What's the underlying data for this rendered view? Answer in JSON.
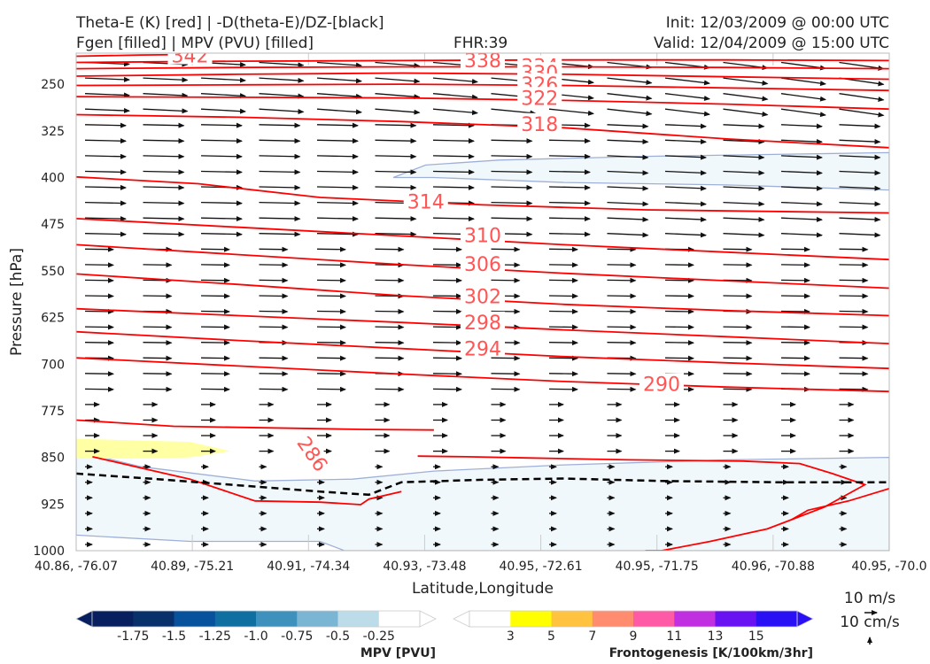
{
  "header": {
    "title_left_1": "Theta-E (K) [red] | -D(theta-E)/DZ-[black]",
    "title_left_2": "Fgen [filled] | MPV (PVU) [filled]",
    "fhr": "FHR:39",
    "init": "Init: 12/03/2009 @ 00:00 UTC",
    "valid": "Valid: 12/04/2009 @ 15:00 UTC"
  },
  "chart_data": {
    "type": "cross-section",
    "xlabel": "Latitude,Longitude",
    "ylabel": "Pressure [hPa]",
    "x_ticks": [
      "40.86, -76.07",
      "40.89, -75.21",
      "40.91, -74.34",
      "40.93, -73.48",
      "40.95, -72.61",
      "40.95, -71.75",
      "40.96, -70.88",
      "40.95, -70.0"
    ],
    "y_ticks": [
      250,
      325,
      400,
      475,
      550,
      625,
      700,
      775,
      850,
      925,
      1000
    ],
    "ylim": [
      1000,
      200
    ],
    "y_inverted": true,
    "theta_e_color": "#ff0000",
    "theta_e_label_color": "#ff5555",
    "theta_e_contours": [
      {
        "level": 342,
        "label": "342",
        "points": [
          [
            0,
            205
          ],
          [
            8,
            203
          ],
          [
            16,
            202
          ]
        ]
      },
      {
        "level": 338,
        "label": "338",
        "points": [
          [
            0,
            215
          ],
          [
            20,
            213
          ],
          [
            40,
            212
          ],
          [
            60,
            211
          ],
          [
            80,
            211
          ],
          [
            100,
            212
          ]
        ]
      },
      {
        "level": 334,
        "label": "334",
        "points": [
          [
            0,
            225
          ],
          [
            20,
            223
          ],
          [
            40,
            222
          ],
          [
            60,
            222
          ],
          [
            80,
            223
          ],
          [
            100,
            225
          ]
        ]
      },
      {
        "level": 330,
        "label": "330",
        "points": [
          [
            0,
            237
          ],
          [
            20,
            234
          ],
          [
            40,
            232
          ],
          [
            60,
            234
          ],
          [
            80,
            238
          ],
          [
            100,
            242
          ]
        ]
      },
      {
        "level": 326,
        "label": "326",
        "points": [
          [
            0,
            252
          ],
          [
            20,
            251
          ],
          [
            40,
            250
          ],
          [
            60,
            252
          ],
          [
            80,
            256
          ],
          [
            100,
            260
          ]
        ]
      },
      {
        "level": 322,
        "label": "322",
        "points": [
          [
            0,
            270
          ],
          [
            20,
            271
          ],
          [
            40,
            272
          ],
          [
            60,
            276
          ],
          [
            80,
            282
          ],
          [
            100,
            290
          ]
        ]
      },
      {
        "level": 318,
        "label": "318",
        "points": [
          [
            0,
            299
          ],
          [
            20,
            303
          ],
          [
            40,
            310
          ],
          [
            60,
            320
          ],
          [
            80,
            338
          ],
          [
            100,
            352
          ]
        ]
      },
      {
        "level": 314,
        "label": "314",
        "points": [
          [
            0,
            399
          ],
          [
            15,
            410
          ],
          [
            30,
            432
          ],
          [
            50,
            444
          ],
          [
            70,
            452
          ],
          [
            100,
            457
          ]
        ]
      },
      {
        "level": 310,
        "label": "310",
        "points": [
          [
            0,
            466
          ],
          [
            20,
            480
          ],
          [
            40,
            494
          ],
          [
            60,
            508
          ],
          [
            80,
            520
          ],
          [
            100,
            532
          ]
        ]
      },
      {
        "level": 306,
        "label": "306",
        "points": [
          [
            0,
            508
          ],
          [
            20,
            524
          ],
          [
            40,
            540
          ],
          [
            60,
            554
          ],
          [
            80,
            566
          ],
          [
            100,
            578
          ]
        ]
      },
      {
        "level": 302,
        "label": "302",
        "points": [
          [
            0,
            555
          ],
          [
            20,
            572
          ],
          [
            40,
            590
          ],
          [
            60,
            604
          ],
          [
            80,
            614
          ],
          [
            100,
            622
          ]
        ]
      },
      {
        "level": 298,
        "label": "298",
        "points": [
          [
            0,
            611
          ],
          [
            20,
            622
          ],
          [
            40,
            633
          ],
          [
            60,
            645
          ],
          [
            80,
            656
          ],
          [
            100,
            667
          ]
        ]
      },
      {
        "level": 294,
        "label": "294",
        "points": [
          [
            0,
            648
          ],
          [
            20,
            662
          ],
          [
            40,
            675
          ],
          [
            60,
            688
          ],
          [
            80,
            698
          ],
          [
            100,
            707
          ]
        ]
      },
      {
        "level": 290,
        "label": "290",
        "points": [
          [
            0,
            690
          ],
          [
            20,
            703
          ],
          [
            40,
            716
          ],
          [
            60,
            728
          ],
          [
            80,
            737
          ],
          [
            100,
            744
          ]
        ]
      },
      {
        "level": 286,
        "label": "286",
        "points": [
          [
            0,
            790
          ],
          [
            12,
            800
          ],
          [
            35,
            805
          ],
          [
            44,
            806
          ]
        ]
      },
      {
        "level": 286,
        "label": "",
        "points": [
          [
            2,
            849
          ],
          [
            4,
            855
          ],
          [
            8,
            867
          ],
          [
            14,
            885
          ],
          [
            22,
            920
          ],
          [
            30,
            922
          ],
          [
            35,
            926
          ],
          [
            36,
            917
          ],
          [
            40,
            905
          ]
        ]
      },
      {
        "level": 286,
        "label": "",
        "points": [
          [
            70,
            1000
          ],
          [
            72,
            1000
          ],
          [
            78,
            985
          ],
          [
            85,
            965
          ],
          [
            88,
            950
          ],
          [
            90,
            935
          ],
          [
            95,
            920
          ],
          [
            100,
            900
          ]
        ]
      },
      {
        "level": 286,
        "label": "",
        "points": [
          [
            42,
            848
          ],
          [
            48,
            849
          ],
          [
            56,
            851
          ],
          [
            68,
            854
          ],
          [
            82,
            856
          ],
          [
            89,
            860
          ],
          [
            93,
            876
          ],
          [
            97,
            894
          ],
          [
            92,
            930
          ],
          [
            88,
            950
          ]
        ]
      }
    ],
    "dthetae_dz_neutral_line": [
      [
        0,
        876
      ],
      [
        10,
        885
      ],
      [
        20,
        895
      ],
      [
        30,
        905
      ],
      [
        36,
        910
      ],
      [
        40,
        890
      ],
      [
        50,
        886
      ],
      [
        60,
        884
      ],
      [
        72,
        888
      ],
      [
        86,
        890
      ],
      [
        100,
        890
      ]
    ],
    "mpv_fill_color": "#f1f8fb",
    "mpv_edge_color": "#9fb0d8",
    "mpv_regions": [
      [
        [
          39,
          400
        ],
        [
          43,
          380
        ],
        [
          52,
          372
        ],
        [
          70,
          366
        ],
        [
          90,
          362
        ],
        [
          100,
          360
        ],
        [
          100,
          420
        ],
        [
          80,
          412
        ],
        [
          60,
          408
        ],
        [
          44,
          400
        ]
      ],
      [
        [
          0,
          840
        ],
        [
          8,
          865
        ],
        [
          22,
          888
        ],
        [
          34,
          885
        ],
        [
          44,
          872
        ],
        [
          60,
          862
        ],
        [
          80,
          854
        ],
        [
          100,
          850
        ],
        [
          100,
          1000
        ],
        [
          33,
          1000
        ],
        [
          30,
          985
        ],
        [
          14,
          985
        ],
        [
          0,
          975
        ]
      ]
    ],
    "fgen_fill_color": "#ffffa3",
    "fgen_regions": [
      [
        [
          0,
          820
        ],
        [
          14,
          825
        ],
        [
          19,
          840
        ],
        [
          14,
          850
        ],
        [
          7,
          852
        ],
        [
          0,
          852
        ]
      ]
    ],
    "wind_vector_scale": {
      "magnitude": "10 m/s",
      "vertical": "10 cm/s"
    },
    "mpv_colorbar": {
      "label": "MPV [PVU]",
      "colors": [
        "#071f5e",
        "#08306b",
        "#08519c",
        "#0e6fa0",
        "#3e91bd",
        "#7ab6d3",
        "#bddcea",
        "#ffffff"
      ],
      "tick_labels": [
        "-1.75",
        "-1.5",
        "-1.25",
        "-1.0",
        "-0.75",
        "-0.5",
        "-0.25"
      ]
    },
    "fgen_colorbar": {
      "label": "Frontogenesis [K/100km/3hr]",
      "colors": [
        "#ffffff",
        "#ffff00",
        "#ffc340",
        "#ff8c6e",
        "#ff5aa6",
        "#c02fe0",
        "#6a13f2",
        "#2a10f5"
      ],
      "tick_labels": [
        "3",
        "5",
        "7",
        "9",
        "11",
        "13",
        "15"
      ]
    }
  }
}
